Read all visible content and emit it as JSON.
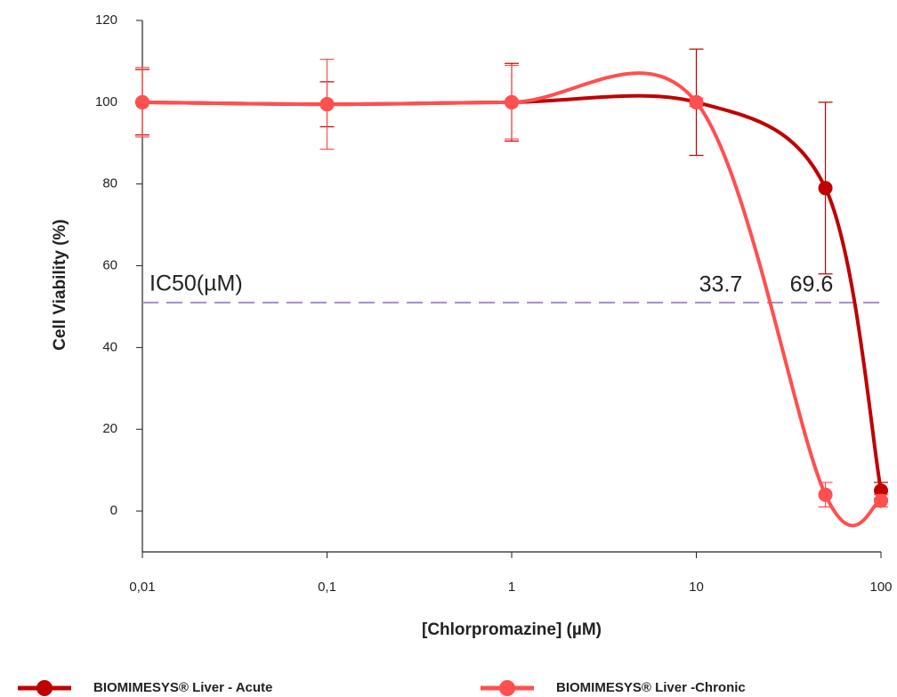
{
  "chart_data": {
    "type": "line",
    "y_label": "Cell Viability (%)",
    "x_label": "[Chlorpromazine] (µM)",
    "x_log": true,
    "x": [
      0.01,
      0.1,
      1,
      10,
      50,
      100
    ],
    "series": [
      {
        "name": "BIOMIMESYS® Liver - Acute",
        "color": "#c00000",
        "values": [
          100,
          99.5,
          100,
          100,
          79,
          5
        ],
        "errors": [
          8,
          5.5,
          9.5,
          13,
          21,
          2
        ]
      },
      {
        "name": "BIOMIMESYS® Liver -Chronic",
        "color": "#ff4f4f",
        "values": [
          100,
          99.5,
          100,
          100,
          4,
          2.5
        ],
        "errors": [
          8.5,
          11,
          9,
          1,
          3,
          1.5
        ]
      }
    ],
    "xlim": [
      0.01,
      100
    ],
    "xticks": [
      {
        "value": 0.01,
        "label": "0,01"
      },
      {
        "value": 0.1,
        "label": "0,1"
      },
      1,
      10,
      100
    ],
    "ylim": [
      -10,
      120
    ],
    "yticks": [
      0,
      20,
      40,
      60,
      80,
      100,
      120
    ],
    "reference_line": {
      "value": 51,
      "color": "#a58bd0",
      "label": "IC50(µM)"
    },
    "annotations": [
      {
        "text": "33.7",
        "color": "#8c8c8c"
      },
      {
        "text": "69.6",
        "color": "#c00000"
      }
    ]
  }
}
